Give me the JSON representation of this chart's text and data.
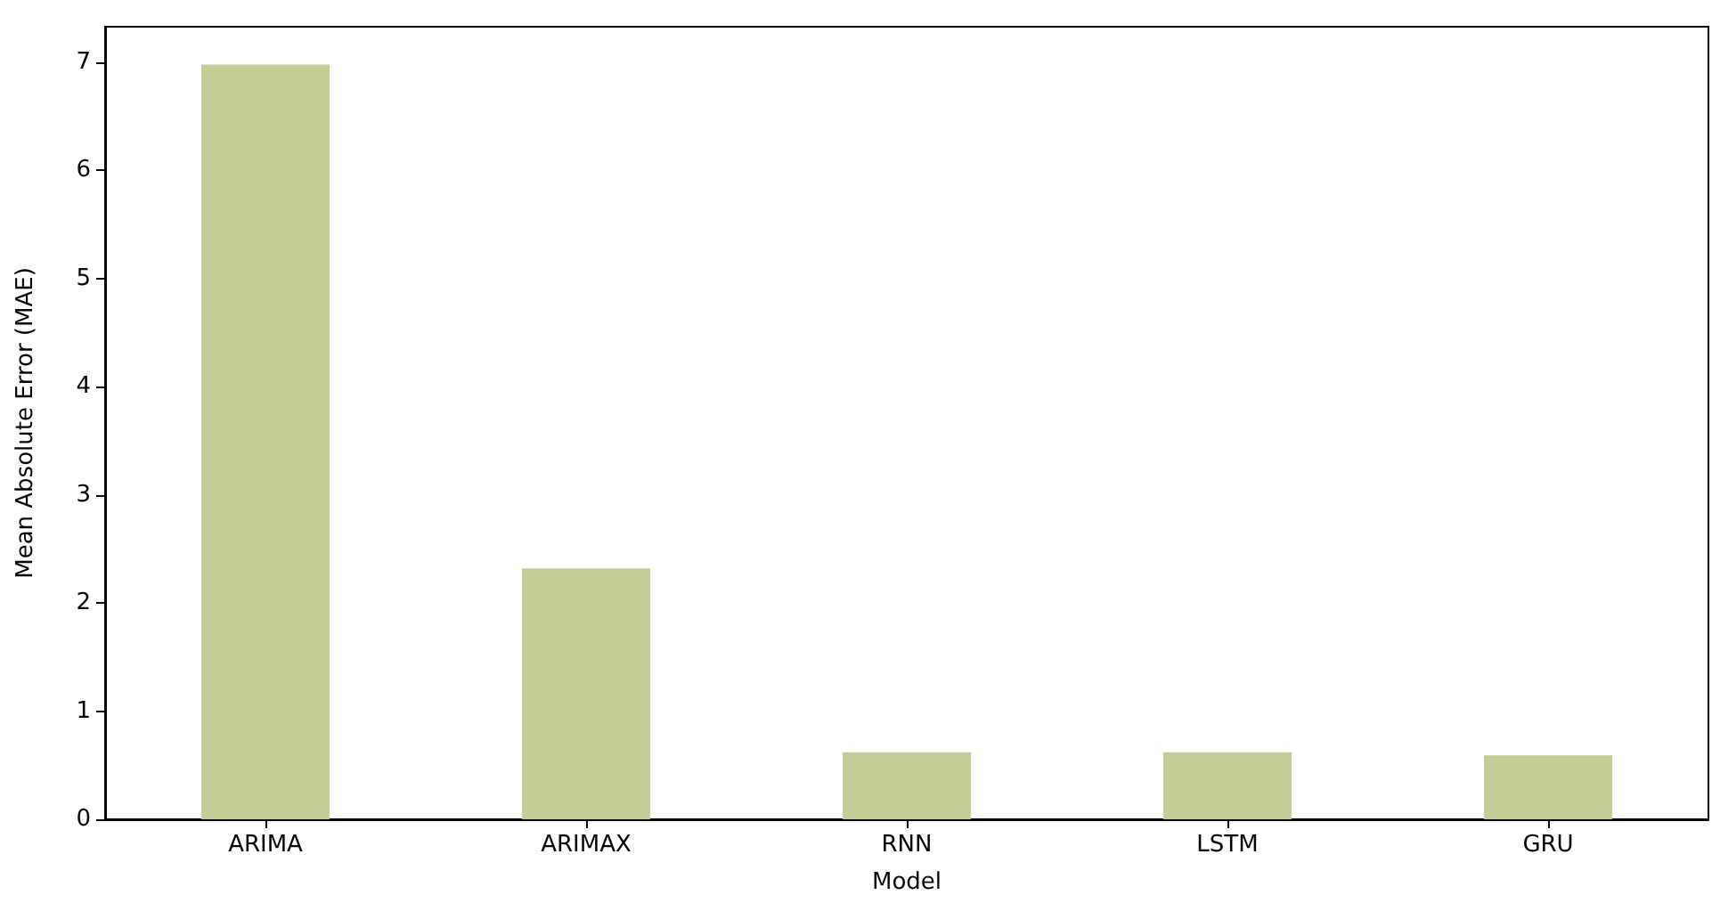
{
  "chart_data": {
    "type": "bar",
    "xlabel": "Model",
    "ylabel": "Mean Absolute Error (MAE)",
    "categories": [
      "ARIMA",
      "ARIMAX",
      "RNN",
      "LSTM",
      "GRU"
    ],
    "values": [
      6.98,
      2.32,
      0.62,
      0.62,
      0.59
    ],
    "color": "#c2cd98",
    "ylim": [
      0,
      7.33
    ],
    "yticks": [
      0,
      1,
      2,
      3,
      4,
      5,
      6,
      7
    ],
    "grid": false
  }
}
